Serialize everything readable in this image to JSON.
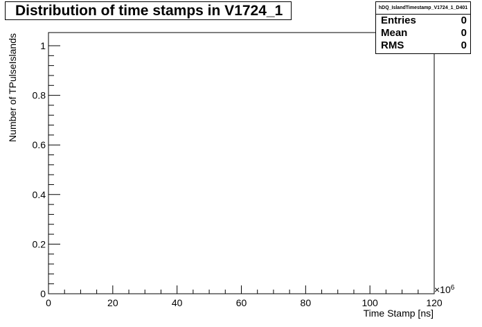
{
  "chart_data": {
    "type": "bar",
    "title": "Distribution of time stamps in V1724_1",
    "xlabel": "Time Stamp [ns]",
    "ylabel": "Number of TPulseIslands",
    "xlim": [
      0,
      120
    ],
    "ylim": [
      0,
      1
    ],
    "x_multiplier": "×10",
    "x_multiplier_exponent": "6",
    "xticks": [
      "0",
      "20",
      "40",
      "60",
      "80",
      "100",
      "120"
    ],
    "yticks": [
      "0",
      "0.2",
      "0.4",
      "0.6",
      "0.8",
      "1"
    ],
    "values": [],
    "grid": false
  },
  "stats": {
    "name": "hDQ_IslandTimestamp_V1724_1_D401",
    "rows": [
      {
        "label": "Entries",
        "value": "0"
      },
      {
        "label": "Mean",
        "value": "0"
      },
      {
        "label": "RMS",
        "value": "0"
      }
    ]
  }
}
